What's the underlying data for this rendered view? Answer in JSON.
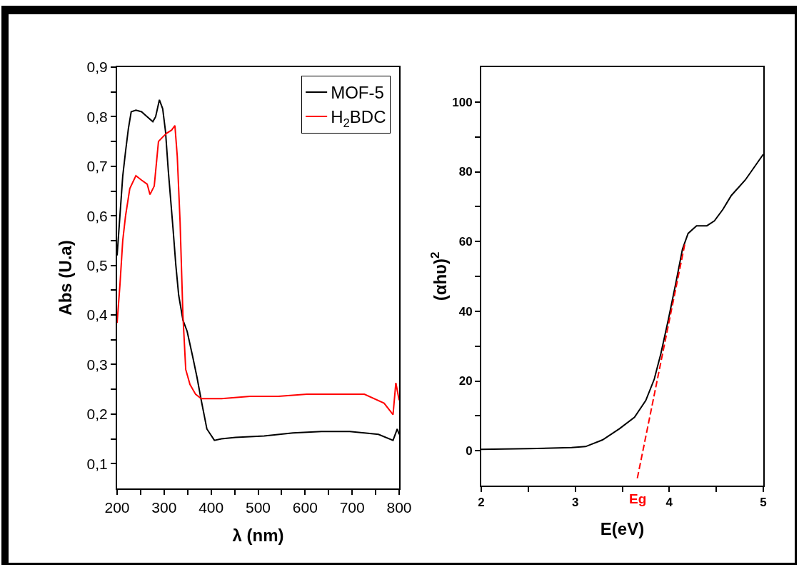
{
  "chart_data": [
    {
      "type": "line",
      "xlabel": "λ (nm)",
      "ylabel": "Abs (U.a)",
      "legend": "top right",
      "grid": false,
      "xlim": [
        200,
        800
      ],
      "xticks": [
        200,
        {
          "value": 250,
          "label": null
        },
        300,
        {
          "value": 350,
          "label": null
        },
        400,
        {
          "value": 450,
          "label": null
        },
        500,
        {
          "value": 550,
          "label": null
        },
        600,
        {
          "value": 650,
          "label": null
        },
        700,
        {
          "value": 750,
          "label": null
        },
        800
      ],
      "ylim": [
        0.05,
        0.9
      ],
      "yticks": [
        {
          "value": 0.1,
          "label": "0,1"
        },
        {
          "value": 0.15,
          "label": null
        },
        {
          "value": 0.2,
          "label": "0,2"
        },
        {
          "value": 0.25,
          "label": null
        },
        {
          "value": 0.3,
          "label": "0,3"
        },
        {
          "value": 0.35,
          "label": null
        },
        {
          "value": 0.4,
          "label": "0,4"
        },
        {
          "value": 0.45,
          "label": null
        },
        {
          "value": 0.5,
          "label": "0,5"
        },
        {
          "value": 0.55,
          "label": null
        },
        {
          "value": 0.6,
          "label": "0,6"
        },
        {
          "value": 0.65,
          "label": null
        },
        {
          "value": 0.7,
          "label": "0,7"
        },
        {
          "value": 0.75,
          "label": null
        },
        {
          "value": 0.8,
          "label": "0,8"
        },
        {
          "value": 0.85,
          "label": null
        },
        {
          "value": 0.9,
          "label": "0,9"
        }
      ],
      "series": [
        {
          "name": "MOF-5",
          "color": "#000000",
          "x": [
            200,
            206,
            212,
            218,
            224,
            230,
            240,
            252,
            264,
            276,
            282,
            290,
            297,
            303,
            309,
            319,
            325,
            331,
            340,
            349,
            361,
            370,
            379,
            391,
            407,
            422,
            452,
            513,
            574,
            635,
            695,
            756,
            787,
            796,
            800
          ],
          "values": [
            0.52,
            0.6,
            0.68,
            0.73,
            0.776,
            0.81,
            0.813,
            0.81,
            0.8,
            0.79,
            0.8,
            0.834,
            0.816,
            0.77,
            0.69,
            0.574,
            0.5,
            0.44,
            0.39,
            0.367,
            0.315,
            0.274,
            0.228,
            0.17,
            0.147,
            0.15,
            0.153,
            0.156,
            0.162,
            0.165,
            0.165,
            0.159,
            0.147,
            0.17,
            0.159
          ]
        },
        {
          "name": "H$_{2}$BDC",
          "color": "#ff0000",
          "x": [
            200,
            206,
            212,
            218,
            227,
            240,
            252,
            264,
            270,
            279,
            288,
            297,
            306,
            316,
            323,
            328,
            334,
            340,
            346,
            355,
            367,
            379,
            422,
            483,
            543,
            604,
            665,
            726,
            768,
            787,
            793,
            800
          ],
          "values": [
            0.384,
            0.46,
            0.55,
            0.6,
            0.655,
            0.681,
            0.672,
            0.664,
            0.643,
            0.66,
            0.75,
            0.759,
            0.767,
            0.773,
            0.782,
            0.72,
            0.587,
            0.4,
            0.29,
            0.26,
            0.24,
            0.231,
            0.231,
            0.236,
            0.236,
            0.24,
            0.24,
            0.24,
            0.222,
            0.199,
            0.263,
            0.228
          ]
        }
      ]
    },
    {
      "type": "line",
      "xlabel": "E(eV)",
      "ylabel": "(αhυ)$^{2}$",
      "legend": false,
      "grid": false,
      "xlim": [
        2,
        5
      ],
      "xticks": [
        2,
        {
          "value": 2.5,
          "label": null
        },
        3,
        {
          "value": 3.5,
          "label": null
        },
        4,
        {
          "value": 4.5,
          "label": null
        },
        5
      ],
      "ylim": [
        -10,
        110
      ],
      "yticks": [
        0,
        {
          "value": 10,
          "label": null
        },
        20,
        {
          "value": 30,
          "label": null
        },
        40,
        {
          "value": 50,
          "label": null
        },
        60,
        {
          "value": 70,
          "label": null
        },
        80,
        {
          "value": 90,
          "label": null
        },
        100
      ],
      "annotations": [
        "Eg"
      ],
      "series": [
        {
          "color": "#000000",
          "line_style": "solid",
          "x": [
            2,
            2.5,
            2.96,
            3.11,
            3.29,
            3.47,
            3.63,
            3.75,
            3.84,
            3.91,
            3.99,
            4.07,
            4.14,
            4.2,
            4.29,
            4.4,
            4.48,
            4.57,
            4.66,
            4.81,
            5
          ],
          "values": [
            0.4,
            0.6,
            0.9,
            1.2,
            3.1,
            6.3,
            9.6,
            14.4,
            20.5,
            27.8,
            37.6,
            48.1,
            57.8,
            62.3,
            64.5,
            64.5,
            65.9,
            69.2,
            73.2,
            77.7,
            85
          ]
        },
        {
          "color": "#ff0000",
          "line_style": "dashed",
          "x": [
            3.66,
            4.17
          ],
          "values": [
            -7.9,
            59.9
          ]
        }
      ]
    }
  ]
}
